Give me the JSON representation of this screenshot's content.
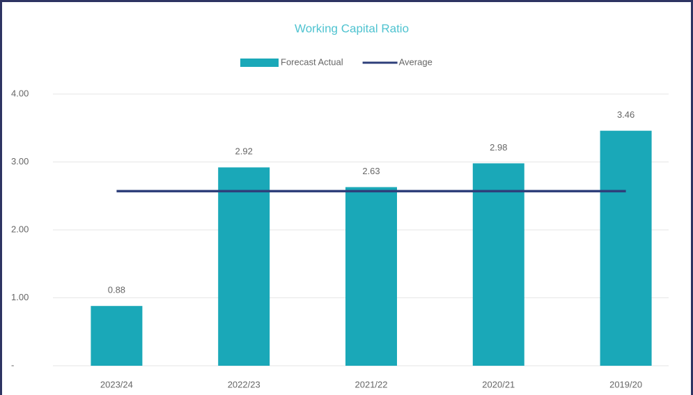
{
  "chart_data": {
    "type": "bar",
    "title": "Working Capital Ratio",
    "categories": [
      "2023/24",
      "2022/23",
      "2021/22",
      "2020/21",
      "2019/20"
    ],
    "series": [
      {
        "name": "Forecast Actual",
        "type": "bar",
        "color": "#1aa8b8",
        "values": [
          0.88,
          2.92,
          2.63,
          2.98,
          3.46
        ]
      },
      {
        "name": "Average",
        "type": "line",
        "color": "#2e3f7a",
        "values": [
          2.57,
          2.57,
          2.57,
          2.57,
          2.57
        ]
      }
    ],
    "ylim": [
      0,
      4
    ],
    "yticks": [
      {
        "value": 0,
        "label": "-"
      },
      {
        "value": 1,
        "label": "1.00"
      },
      {
        "value": 2,
        "label": "2.00"
      },
      {
        "value": 3,
        "label": "3.00"
      },
      {
        "value": 4,
        "label": "4.00"
      }
    ],
    "grid": true,
    "legend": "top"
  }
}
